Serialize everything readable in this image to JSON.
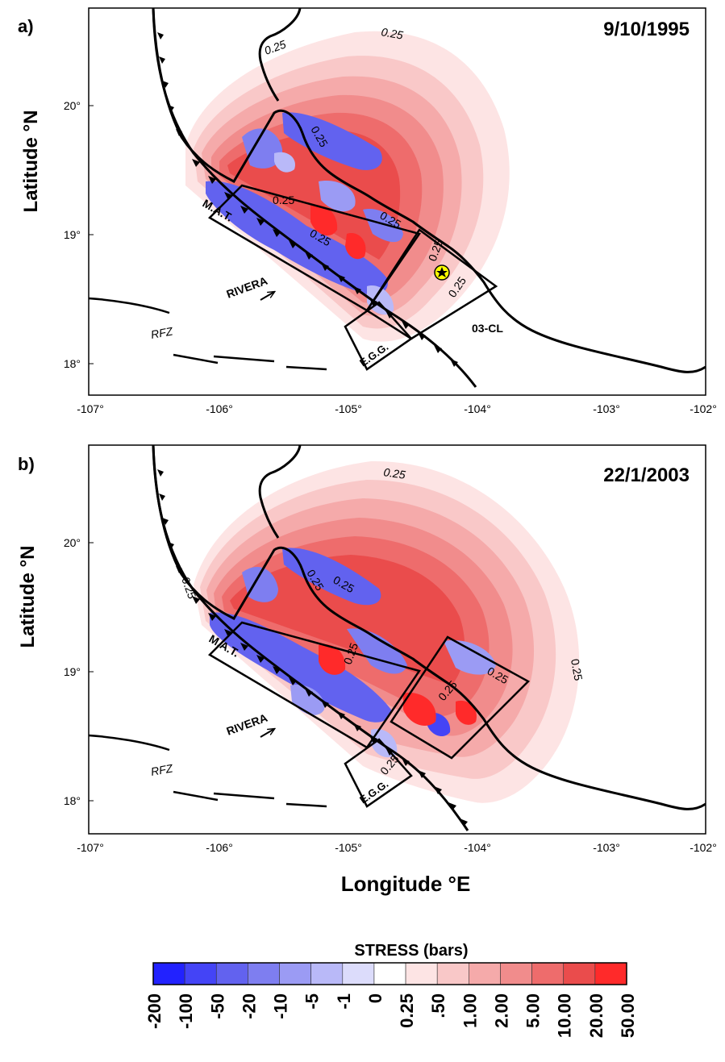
{
  "panels": [
    {
      "id": "a",
      "panel_label": "a)",
      "date": "9/10/1995",
      "contour_labels": [
        "0.25",
        "0.25",
        "0.25",
        "0.25",
        "0.25",
        "0.25",
        "0.25",
        "0.25",
        "0.25"
      ],
      "has_epicenter_star": true,
      "feature_labels": {
        "mat": "M.A.T.",
        "rivera": "RIVERA",
        "rfz": "RFZ",
        "egg": "E.G.G.",
        "cl": "03-CL"
      }
    },
    {
      "id": "b",
      "panel_label": "b)",
      "date": "22/1/2003",
      "contour_labels": [
        "0.25",
        "0.25",
        "0.25",
        "0.25",
        "0.25",
        "0.25",
        "0.25",
        "0.25",
        "0.25"
      ],
      "has_epicenter_star": false,
      "feature_labels": {
        "mat": "M.A.T.",
        "rivera": "RIVERA",
        "rfz": "RFZ",
        "egg": "E.G.G."
      }
    }
  ],
  "axes": {
    "ylabel": "Latitude °N",
    "xlabel": "Longitude °E",
    "x_ticks": [
      "-107°",
      "-106°",
      "-105°",
      "-104°",
      "-103°",
      "-102°"
    ],
    "y_ticks": [
      "20°",
      "19°",
      "18°"
    ]
  },
  "colorbar": {
    "title": "STRESS (bars)",
    "labels": [
      "-200",
      "-100",
      "-50",
      "-20",
      "-10",
      "-5",
      "-1",
      "0",
      "0.25",
      ".50",
      "1.00",
      "2.00",
      "5.00",
      "10.00",
      "20.00",
      "50.00"
    ],
    "colors": [
      "#2222ff",
      "#4444f6",
      "#6262ef",
      "#7e7ef0",
      "#9b9bf4",
      "#b9b9f8",
      "#dcdcfb",
      "#ffffff",
      "#fde4e4",
      "#f9c8c8",
      "#f5aaaa",
      "#f18c8c",
      "#ee6c6c",
      "#ea4c4c",
      "#ff2a2a"
    ]
  }
}
